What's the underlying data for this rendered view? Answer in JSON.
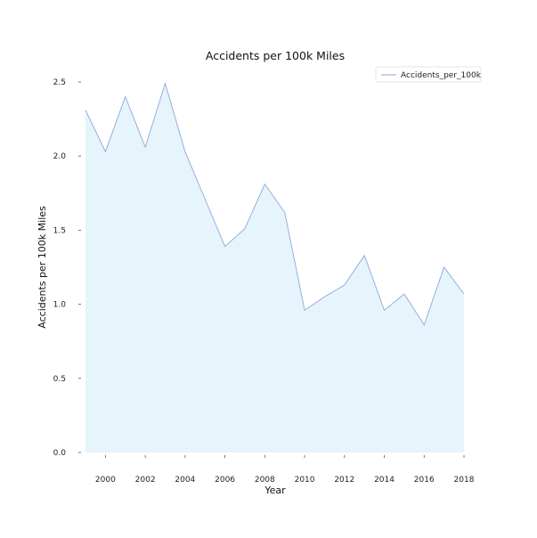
{
  "chart_data": {
    "type": "area",
    "title": "Accidents per 100k Miles",
    "xlabel": "Year",
    "ylabel": "Accidents per 100k Miles",
    "x": [
      1999,
      2000,
      2001,
      2002,
      2003,
      2004,
      2005,
      2006,
      2007,
      2008,
      2009,
      2010,
      2011,
      2012,
      2013,
      2014,
      2015,
      2016,
      2017,
      2018
    ],
    "series": [
      {
        "name": "Accidents_per_100k",
        "values": [
          2.31,
          2.03,
          2.4,
          2.06,
          2.49,
          2.03,
          1.71,
          1.39,
          1.51,
          1.81,
          1.62,
          0.96,
          1.05,
          1.13,
          1.33,
          0.96,
          1.07,
          0.86,
          1.25,
          1.07
        ],
        "line_color": "#8ea6da",
        "fill_color": "#e6f4fb"
      }
    ],
    "xlim": [
      1999,
      2018
    ],
    "ylim": [
      0,
      2.5
    ],
    "x_ticks": [
      "2000",
      "2002",
      "2004",
      "2006",
      "2008",
      "2010",
      "2012",
      "2014",
      "2016",
      "2018"
    ],
    "y_ticks": [
      "0.0",
      "0.5",
      "1.0",
      "1.5",
      "2.0",
      "2.5"
    ],
    "grid": false,
    "legend": "top-right"
  }
}
